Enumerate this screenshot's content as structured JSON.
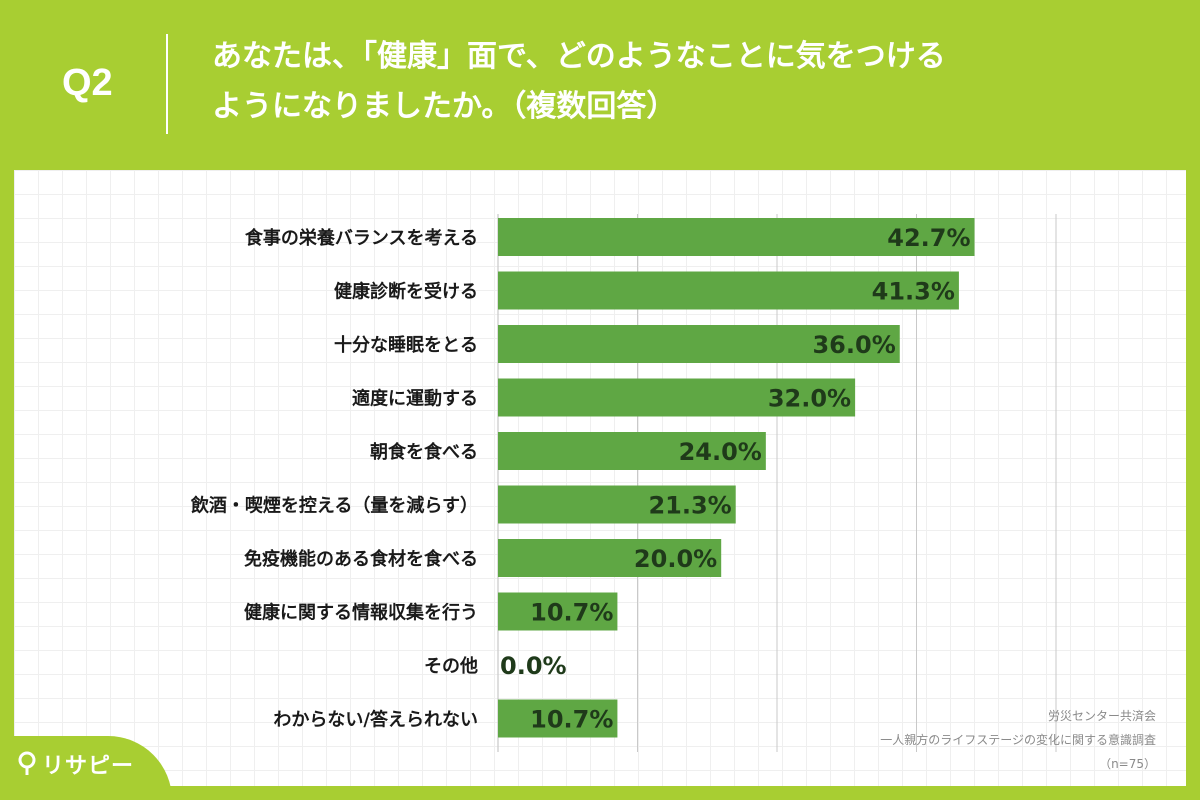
{
  "header": {
    "q_label": "Q2",
    "question_line1": "あなたは、「健康」面で、どのようなことに気をつける",
    "question_line2": "ようになりましたか。（複数回答）"
  },
  "chart_data": {
    "type": "bar",
    "orientation": "horizontal",
    "categories": [
      "食事の栄養バランスを考える",
      "健康診断を受ける",
      "十分な睡眠をとる",
      "適度に運動する",
      "朝食を食べる",
      "飲酒・喫煙を控える（量を減らす）",
      "免疫機能のある食材を食べる",
      "健康に関する情報収集を行う",
      "その他",
      "わからない/答えられない"
    ],
    "values": [
      42.7,
      41.3,
      36.0,
      32.0,
      24.0,
      21.3,
      20.0,
      10.7,
      0.0,
      10.7
    ],
    "value_labels": [
      "42.7%",
      "41.3%",
      "36.0%",
      "32.0%",
      "24.0%",
      "21.3%",
      "20.0%",
      "10.7%",
      "0.0%",
      "10.7%"
    ],
    "xlim": [
      0,
      50
    ],
    "gridlines": [
      0,
      12.5,
      25,
      37.5,
      50
    ],
    "grid": true,
    "bar_color": "#5fa744",
    "label_color": "#1f3a1a"
  },
  "source": {
    "line1": "労災センター共済会",
    "line2": "一人親方のライフステージの変化に関する意識調査",
    "line3": "（n=75）"
  },
  "logo": {
    "text": "リサピー"
  },
  "colors": {
    "background": "#a8ce32",
    "card": "#ffffff"
  }
}
